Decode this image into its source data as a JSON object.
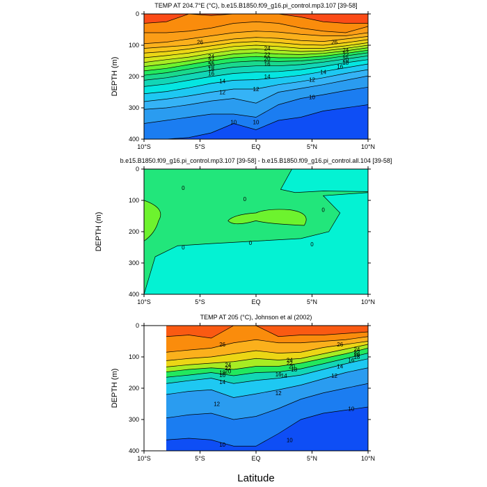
{
  "figure": {
    "xlabel": "Latitude"
  },
  "chart_data": [
    {
      "type": "contour",
      "title": "TEMP AT 204.7°E (°C), b.e15.B1850.f09_g16.pi_control.mp3.107 [39-58]",
      "ylabel": "DEPTH (m)",
      "x_ticks": [
        "10°S",
        "5°S",
        "EQ",
        "5°N",
        "10°N"
      ],
      "xlim": [
        -10,
        10
      ],
      "y_ticks": [
        "0",
        "100",
        "200",
        "300",
        "400"
      ],
      "ylim": [
        400,
        0
      ],
      "y_reversed": true,
      "contour_labels": [
        "26",
        "24",
        "22",
        "20",
        "18",
        "16",
        "14",
        "12",
        "10",
        "26",
        "24",
        "22",
        "20",
        "18",
        "16",
        "14",
        "12",
        "10",
        "24",
        "22",
        "20",
        "18",
        "16",
        "14",
        "12",
        "10"
      ],
      "bands": [
        {
          "level": 27,
          "color": "#fb4b17",
          "ys": [
            0,
            0,
            0,
            0,
            0,
            0,
            0,
            0,
            0
          ],
          "ys_bottom_note": ""
        },
        {
          "level": 26,
          "color": "#fa8c0c"
        },
        {
          "level": 25,
          "color": "#fb9d17"
        },
        {
          "level": 24,
          "color": "#fbb01c"
        },
        {
          "level": 23,
          "color": "#f8c41a"
        },
        {
          "level": 22,
          "color": "#ecd615"
        },
        {
          "level": 21,
          "color": "#d6e51b"
        },
        {
          "level": 20,
          "color": "#a7ec23"
        },
        {
          "level": 19,
          "color": "#6df32e"
        },
        {
          "level": 18,
          "color": "#22e85e"
        },
        {
          "level": 17,
          "color": "#1ad98d"
        },
        {
          "level": 16,
          "color": "#12d6b6"
        },
        {
          "level": 15,
          "color": "#05e6e1"
        },
        {
          "level": 14,
          "color": "#1ec8f2"
        },
        {
          "level": 13,
          "color": "#35b3f6"
        },
        {
          "level": 12,
          "color": "#2a9cf0"
        },
        {
          "level": 11,
          "color": "#1b7df1"
        },
        {
          "level": 10,
          "color": "#0e4ef5"
        }
      ]
    },
    {
      "type": "contour",
      "title": "b.e15.B1850.f09_g16.pi_control.mp3.107 [39-58] - b.e15.B1850.f09_g16.pi_control.all.104 [39-58]",
      "ylabel": "DEPTH (m)",
      "x_ticks": [
        "10°S",
        "5°S",
        "EQ",
        "5°N",
        "10°N"
      ],
      "xlim": [
        -10,
        10
      ],
      "y_ticks": [
        "0",
        "100",
        "200",
        "300",
        "400"
      ],
      "ylim": [
        400,
        0
      ],
      "y_reversed": true,
      "contour_labels": [
        "0",
        "0",
        "0",
        "0",
        "0",
        "0",
        "0",
        "0"
      ],
      "bands": [
        {
          "level": 0,
          "color": "#22e67b"
        },
        {
          "level": -1,
          "color": "#04f2d3"
        },
        {
          "level": 1,
          "color": "#6df32e"
        }
      ]
    },
    {
      "type": "contour",
      "title": "TEMP AT 205 (°C), Johnson et al (2002)",
      "ylabel": "DEPTH (m)",
      "x_ticks": [
        "10°S",
        "5°S",
        "EQ",
        "5°N",
        "10°N"
      ],
      "xlim": [
        -10,
        10
      ],
      "y_ticks": [
        "0",
        "100",
        "200",
        "300",
        "400"
      ],
      "ylim": [
        400,
        0
      ],
      "y_reversed": true,
      "data_xlim": [
        -8,
        10
      ],
      "contour_labels": [
        "26",
        "24",
        "22",
        "20",
        "18",
        "16",
        "14",
        "12",
        "10",
        "24",
        "22",
        "20",
        "18",
        "16",
        "14",
        "12",
        "10",
        "26",
        "24",
        "22",
        "20",
        "18",
        "16",
        "14",
        "12",
        "10"
      ],
      "bands": [
        {
          "level": 28,
          "color": "#f61b10"
        },
        {
          "level": 27,
          "color": "#fa5a12"
        },
        {
          "level": 26,
          "color": "#fa8c0c"
        },
        {
          "level": 24,
          "color": "#fbb01c"
        },
        {
          "level": 22,
          "color": "#ecd615"
        },
        {
          "level": 20,
          "color": "#a7ec23"
        },
        {
          "level": 18,
          "color": "#22e85e"
        },
        {
          "level": 16,
          "color": "#12d6b6"
        },
        {
          "level": 14,
          "color": "#1ec8f2"
        },
        {
          "level": 12,
          "color": "#2a9cf0"
        },
        {
          "level": 10,
          "color": "#1b7df1"
        },
        {
          "level": 8,
          "color": "#0e4ef5"
        }
      ]
    }
  ]
}
